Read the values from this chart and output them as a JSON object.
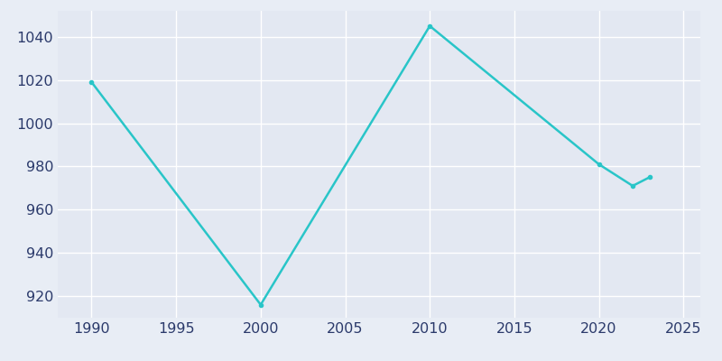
{
  "years": [
    1990,
    2000,
    2010,
    2020,
    2022,
    2023
  ],
  "population": [
    1019,
    916,
    1045,
    981,
    971,
    975
  ],
  "line_color": "#29C5C8",
  "marker": "o",
  "marker_size": 3,
  "line_width": 1.8,
  "fig_bg_color": "#E8EDF5",
  "plot_bg_color": "#E3E8F2",
  "grid_color": "#FFFFFF",
  "xlim": [
    1988,
    2026
  ],
  "ylim": [
    910,
    1052
  ],
  "yticks": [
    920,
    940,
    960,
    980,
    1000,
    1020,
    1040
  ],
  "xticks": [
    1990,
    1995,
    2000,
    2005,
    2010,
    2015,
    2020,
    2025
  ],
  "tick_label_color": "#2B3A6B",
  "tick_fontsize": 11.5
}
